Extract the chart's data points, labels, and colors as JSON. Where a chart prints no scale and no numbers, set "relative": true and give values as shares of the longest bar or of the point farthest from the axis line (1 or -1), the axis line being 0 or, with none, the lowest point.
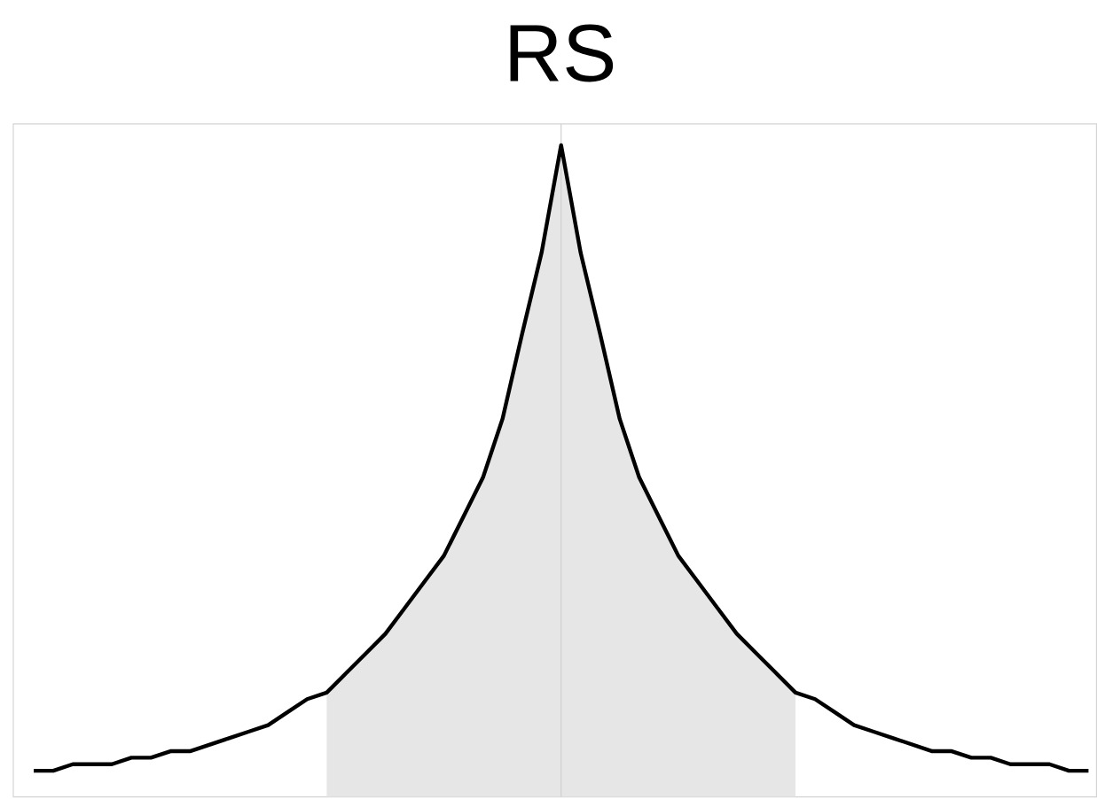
{
  "chart_data": {
    "type": "line",
    "title": "RS",
    "relative": true,
    "categories": [
      null,
      null,
      null,
      null,
      null,
      null,
      null,
      null,
      null,
      null,
      null,
      null,
      null,
      null,
      null,
      null,
      null,
      null,
      null,
      null,
      null,
      null,
      null,
      null,
      null,
      null,
      null,
      null,
      null,
      null,
      null,
      null,
      null,
      null,
      null,
      null,
      null,
      null,
      null,
      null,
      null,
      null,
      null,
      null,
      null,
      null,
      null,
      null,
      null,
      null,
      null,
      null,
      null,
      null,
      null
    ],
    "series": [
      {
        "type": "area",
        "color": "#e6e6e6",
        "values": [
          null,
          null,
          null,
          null,
          null,
          null,
          null,
          null,
          null,
          null,
          null,
          null,
          null,
          null,
          null,
          0.16,
          0.19,
          0.22,
          0.25,
          0.29,
          0.33,
          0.37,
          0.43,
          0.49,
          0.58,
          0.71,
          0.835,
          1.0,
          0.835,
          0.71,
          0.58,
          0.49,
          0.43,
          0.37,
          0.33,
          0.29,
          0.25,
          0.22,
          0.19,
          0.16,
          null,
          null,
          null,
          null,
          null,
          null,
          null,
          null,
          null,
          null,
          null,
          null,
          null,
          null,
          null
        ]
      },
      {
        "color": "#000000",
        "values": [
          0.04,
          0.04,
          0.05,
          0.05,
          0.05,
          0.06,
          0.06,
          0.07,
          0.07,
          0.08,
          0.09,
          0.1,
          0.11,
          0.13,
          0.15,
          0.16,
          0.19,
          0.22,
          0.25,
          0.29,
          0.33,
          0.37,
          0.43,
          0.49,
          0.58,
          0.71,
          0.835,
          1.0,
          0.835,
          0.71,
          0.58,
          0.49,
          0.43,
          0.37,
          0.33,
          0.29,
          0.25,
          0.22,
          0.19,
          0.16,
          0.15,
          0.13,
          0.11,
          0.1,
          0.09,
          0.08,
          0.07,
          0.07,
          0.06,
          0.06,
          0.05,
          0.05,
          0.05,
          0.04,
          0.04
        ]
      }
    ]
  }
}
